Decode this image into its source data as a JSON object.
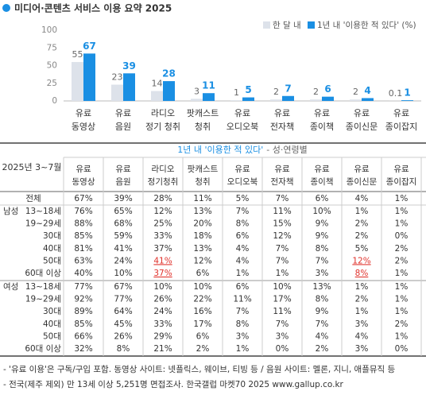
{
  "title": "미디어·콘텐츠 서비스 이용 요약 2025",
  "chart_data": {
    "type": "bar",
    "categories": [
      [
        "유료",
        "동영상"
      ],
      [
        "유료",
        "음원"
      ],
      [
        "라디오",
        "정기 청취"
      ],
      [
        "팟캐스트",
        "청취"
      ],
      [
        "유료",
        "오디오북"
      ],
      [
        "유료",
        "전자책"
      ],
      [
        "유료",
        "종이책"
      ],
      [
        "유료",
        "종이신문"
      ],
      [
        "유료",
        "종이잡지"
      ]
    ],
    "series": [
      {
        "name": "한 달 내",
        "color": "#dde2ea",
        "values": [
          55,
          23,
          14,
          3,
          1,
          2,
          2,
          2,
          0.1
        ]
      },
      {
        "name": "1년 내 '이용한 적 있다' (%)",
        "color": "#1a8fe3",
        "values": [
          67,
          39,
          28,
          11,
          5,
          7,
          6,
          4,
          1
        ]
      }
    ],
    "ylim": [
      0,
      100
    ],
    "yticks": [
      0,
      25,
      50,
      75,
      100
    ]
  },
  "table": {
    "corner": "2025년 3~7월",
    "heading": "1년 내 '이용한 적 있다'",
    "subheading": "- 성·연령별",
    "columns": [
      [
        "유료",
        "동영상"
      ],
      [
        "유료",
        "음원"
      ],
      [
        "라디오",
        "정기청취"
      ],
      [
        "팟캐스트",
        "청취"
      ],
      [
        "유료",
        "오디오북"
      ],
      [
        "유료",
        "전자책"
      ],
      [
        "유료",
        "종이책"
      ],
      [
        "유료",
        "종이신문"
      ],
      [
        "유료",
        "종이잡지"
      ]
    ],
    "rows": [
      {
        "label": "전체",
        "cells": [
          "67%",
          "39%",
          "28%",
          "11%",
          "5%",
          "7%",
          "6%",
          "4%",
          "1%"
        ]
      },
      {
        "group": "남성",
        "label": "13~18세",
        "cells": [
          "76%",
          "65%",
          "12%",
          "13%",
          "7%",
          "11%",
          "10%",
          "1%",
          "1%"
        ]
      },
      {
        "label": "19~29세",
        "cells": [
          "88%",
          "68%",
          "25%",
          "20%",
          "8%",
          "15%",
          "9%",
          "2%",
          "1%"
        ]
      },
      {
        "label": "30대",
        "cells": [
          "85%",
          "59%",
          "33%",
          "18%",
          "6%",
          "12%",
          "9%",
          "2%",
          "0%"
        ]
      },
      {
        "label": "40대",
        "cells": [
          "81%",
          "41%",
          "37%",
          "13%",
          "4%",
          "7%",
          "8%",
          "5%",
          "2%"
        ]
      },
      {
        "label": "50대",
        "cells": [
          "63%",
          "24%",
          "41%",
          "12%",
          "4%",
          "7%",
          "7%",
          "12%",
          "2%"
        ]
      },
      {
        "label": "60대 이상",
        "cells": [
          "40%",
          "10%",
          "37%",
          "6%",
          "1%",
          "1%",
          "3%",
          "8%",
          "1%"
        ]
      },
      {
        "group": "여성",
        "label": "13~18세",
        "cells": [
          "77%",
          "67%",
          "10%",
          "10%",
          "6%",
          "10%",
          "13%",
          "1%",
          "1%"
        ]
      },
      {
        "label": "19~29세",
        "cells": [
          "92%",
          "77%",
          "26%",
          "22%",
          "11%",
          "17%",
          "8%",
          "2%",
          "1%"
        ]
      },
      {
        "label": "30대",
        "cells": [
          "89%",
          "64%",
          "24%",
          "16%",
          "7%",
          "11%",
          "9%",
          "1%",
          "1%"
        ]
      },
      {
        "label": "40대",
        "cells": [
          "85%",
          "45%",
          "33%",
          "17%",
          "8%",
          "7%",
          "7%",
          "3%",
          "2%"
        ]
      },
      {
        "label": "50대",
        "cells": [
          "66%",
          "26%",
          "29%",
          "6%",
          "3%",
          "3%",
          "4%",
          "4%",
          "1%"
        ]
      },
      {
        "label": "60대 이상",
        "cells": [
          "32%",
          "8%",
          "21%",
          "2%",
          "1%",
          "0%",
          "2%",
          "3%",
          "0%"
        ]
      }
    ],
    "highlighted": [
      [
        5,
        2
      ],
      [
        5,
        7
      ],
      [
        6,
        2
      ],
      [
        6,
        7
      ]
    ],
    "highlight_color": "#e0302a"
  },
  "notes": [
    "- '유료 이용'은 구독/구입 포함. 동영상 사이트: 넷플릭스, 웨이브, 티빙 등 / 음원 사이트: 멜론, 지니, 애플뮤직 등",
    "- 전국(제주 제외) 만 13세 이상 5,251명 면접조사. 한국갤럽 마켓70 2025 www.gallup.co.kr"
  ]
}
